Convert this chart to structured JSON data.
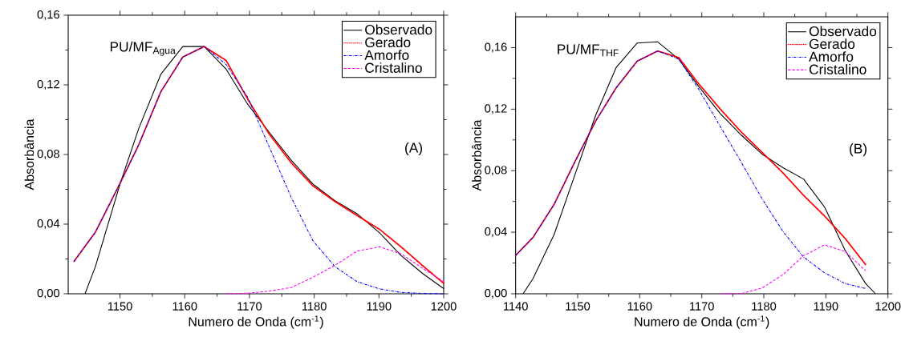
{
  "chart_data": [
    {
      "type": "line",
      "xlabel": "Numero de Onda (cm$^{-1}$)",
      "ylabel": "Absorbância",
      "annotations": [
        "PU/MF$_{Agua}$",
        "(A)"
      ],
      "xlim": [
        1142,
        1200
      ],
      "xticks": [
        1150,
        1160,
        1170,
        1180,
        1190,
        1200
      ],
      "ylim": [
        0,
        0.16
      ],
      "yticks": [
        {
          "value": 0,
          "label": "0,00"
        },
        {
          "value": 0.04,
          "label": "0,04"
        },
        {
          "value": 0.08,
          "label": "0,08"
        },
        {
          "value": 0.12,
          "label": "0,12"
        },
        {
          "value": 0.16,
          "label": "0,16"
        }
      ],
      "legend": "top right",
      "grid": false,
      "series": [
        {
          "name": "Observado",
          "color": "#000000",
          "line_style": "solid",
          "x": [
            1144.6,
            1146.2,
            1150,
            1152.9,
            1156.3,
            1159.7,
            1163,
            1166.4,
            1169.7,
            1173,
            1176.5,
            1179.8,
            1183.2,
            1186.6,
            1190.1,
            1193.4,
            1196.8,
            1200
          ],
          "values": [
            0,
            0.0156,
            0.063,
            0.095,
            0.126,
            0.142,
            0.142,
            0.129,
            0.109,
            0.093,
            0.0765,
            0.063,
            0.0535,
            0.046,
            0.035,
            0.022,
            0.0115,
            0.003
          ]
        },
        {
          "name": "Gerado",
          "color": "#ff0000",
          "line_style": "dotted",
          "x": [
            1142.9,
            1146.2,
            1150,
            1152.9,
            1156.3,
            1159.7,
            1163,
            1166.4,
            1169.7,
            1173,
            1176.5,
            1179.8,
            1183.2,
            1186.6,
            1190.1,
            1193.4,
            1196.8,
            1200
          ],
          "values": [
            0.0186,
            0.0354,
            0.0634,
            0.0856,
            0.116,
            0.136,
            0.142,
            0.134,
            0.112,
            0.092,
            0.075,
            0.062,
            0.053,
            0.045,
            0.037,
            0.027,
            0.016,
            0.006
          ]
        },
        {
          "name": "Amorfo",
          "color": "#0000ff",
          "line_style": "dashdot",
          "x": [
            1142.9,
            1146.2,
            1150,
            1152.9,
            1156.3,
            1159.7,
            1163,
            1166.4,
            1169.7,
            1173,
            1176.5,
            1179.8,
            1183.2,
            1186.6,
            1190.1,
            1193.4,
            1196.8,
            1200
          ],
          "values": [
            0.0186,
            0.0354,
            0.0634,
            0.0856,
            0.116,
            0.136,
            0.142,
            0.1317,
            0.113,
            0.0848,
            0.055,
            0.0305,
            0.0156,
            0.007,
            0.0028,
            0.0008,
            0.0002,
            0
          ]
        },
        {
          "name": "Cristalino",
          "color": "#ff00ff",
          "line_style": "dashed",
          "x": [
            1166.4,
            1169.7,
            1173,
            1176.5,
            1179.8,
            1183.2,
            1186.6,
            1190.1,
            1193.4,
            1196.8,
            1200
          ],
          "values": [
            0,
            0.0003,
            0.0015,
            0.0036,
            0.0095,
            0.0163,
            0.0245,
            0.027,
            0.023,
            0.0145,
            0.007
          ]
        }
      ]
    },
    {
      "type": "line",
      "xlabel": "Numero de Onda (cm$^{-1}$)",
      "ylabel": "Absorbância",
      "annotations": [
        "PU/MF$_{THF}$",
        "(B)"
      ],
      "xlim": [
        1140,
        1200
      ],
      "xticks": [
        1140,
        1150,
        1160,
        1170,
        1180,
        1190,
        1200
      ],
      "ylim": [
        0,
        0.18
      ],
      "yticks": [
        {
          "value": 0,
          "label": "0,00"
        },
        {
          "value": 0.04,
          "label": "0,04"
        },
        {
          "value": 0.08,
          "label": "0,08"
        },
        {
          "value": 0.12,
          "label": "0,12"
        },
        {
          "value": 0.16,
          "label": "0,16"
        }
      ],
      "legend": "top right",
      "grid": false,
      "series": [
        {
          "name": "Observado",
          "color": "#000000",
          "line_style": "solid",
          "x": [
            1141.2,
            1142.8,
            1146.2,
            1149.6,
            1152.9,
            1156.2,
            1159.6,
            1162.9,
            1166.3,
            1169.5,
            1173,
            1176.4,
            1179.7,
            1183.1,
            1186.4,
            1189.8,
            1193.1,
            1196.4,
            1198
          ],
          "values": [
            0,
            0.0099,
            0.0385,
            0.0778,
            0.116,
            0.147,
            0.163,
            0.1637,
            0.1525,
            0.1348,
            0.117,
            0.103,
            0.0908,
            0.0819,
            0.0746,
            0.0563,
            0.0282,
            0.0067,
            0
          ]
        },
        {
          "name": "Gerado",
          "color": "#ff0000",
          "line_style": "dotted",
          "x": [
            1140,
            1142.8,
            1146.2,
            1149.6,
            1152.9,
            1156.2,
            1159.6,
            1162.9,
            1166.3,
            1169.5,
            1173,
            1176.4,
            1179.7,
            1183.1,
            1186.4,
            1189.8,
            1193.1,
            1196.4
          ],
          "values": [
            0.0249,
            0.0366,
            0.0581,
            0.0862,
            0.1123,
            0.1338,
            0.1512,
            0.1578,
            0.1535,
            0.1365,
            0.12,
            0.105,
            0.092,
            0.0785,
            0.064,
            0.0505,
            0.036,
            0.019
          ]
        },
        {
          "name": "Amorfo",
          "color": "#0000ff",
          "line_style": "dashdot",
          "x": [
            1140,
            1142.8,
            1146.2,
            1149.6,
            1152.9,
            1156.2,
            1159.6,
            1162.9,
            1166.3,
            1169.5,
            1173,
            1176.4,
            1179.7,
            1183.1,
            1186.4,
            1189.8,
            1193.1,
            1196.4
          ],
          "values": [
            0.0249,
            0.0366,
            0.0581,
            0.0862,
            0.1123,
            0.1338,
            0.1512,
            0.1578,
            0.1525,
            0.133,
            0.1086,
            0.0852,
            0.0619,
            0.0404,
            0.0239,
            0.0136,
            0.0067,
            0.0034
          ]
        },
        {
          "name": "Cristalino",
          "color": "#ff00ff",
          "line_style": "dashed",
          "x": [
            1173,
            1176.4,
            1179.7,
            1183.1,
            1186.4,
            1189.8,
            1193.1,
            1196.4
          ],
          "values": [
            0,
            0.0002,
            0.0037,
            0.0125,
            0.0247,
            0.0318,
            0.0275,
            0.015
          ]
        }
      ]
    }
  ]
}
